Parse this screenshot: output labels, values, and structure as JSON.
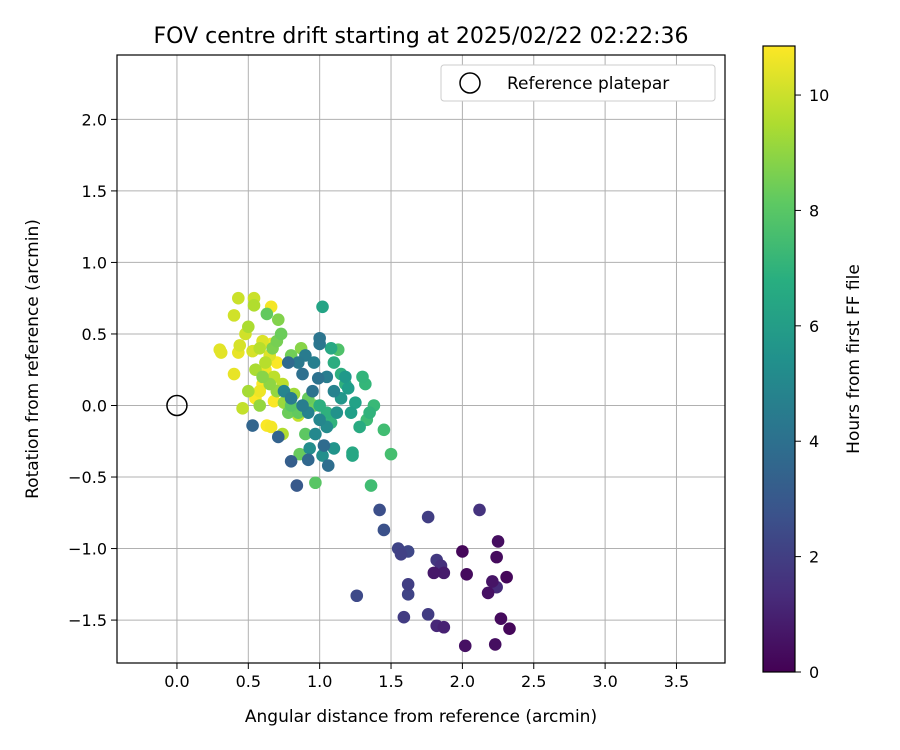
{
  "chart_data": {
    "type": "scatter",
    "title": "FOV centre drift starting at 2025/02/22 02:22:36",
    "xlabel": "Angular distance from reference (arcmin)",
    "ylabel": "Rotation from reference (arcmin)",
    "xlim": [
      -0.42,
      3.84
    ],
    "ylim": [
      -1.8,
      2.45
    ],
    "xticks": [
      "0.0",
      "0.5",
      "1.0",
      "1.5",
      "2.0",
      "2.5",
      "3.0",
      "3.5"
    ],
    "yticks": [
      "−1.5",
      "−1.0",
      "−0.5",
      "0.0",
      "0.5",
      "1.0",
      "1.5",
      "2.0"
    ],
    "xtick_values": [
      0,
      0.5,
      1,
      1.5,
      2,
      2.5,
      3,
      3.5
    ],
    "ytick_values": [
      -1.5,
      -1.0,
      -0.5,
      0,
      0.5,
      1.0,
      1.5,
      2.0
    ],
    "grid": true,
    "legend_position": "top-right",
    "legend": [
      {
        "label": "Reference platepar",
        "marker": "open-circle"
      }
    ],
    "reference_point": {
      "x": 0.0,
      "y": 0.0
    },
    "colorbar": {
      "label": "Hours from first FF file",
      "colormap": "viridis",
      "range": [
        0,
        10.85
      ],
      "ticks": [
        "0",
        "2",
        "4",
        "6",
        "8",
        "10"
      ],
      "tick_values": [
        0,
        2,
        4,
        6,
        8,
        10
      ]
    },
    "points": [
      {
        "x": 2.0,
        "y": -1.02,
        "h": 0.2
      },
      {
        "x": 2.03,
        "y": -1.18,
        "h": 0.3
      },
      {
        "x": 2.25,
        "y": -0.95,
        "h": 0.4
      },
      {
        "x": 2.24,
        "y": -1.06,
        "h": 0.3
      },
      {
        "x": 2.31,
        "y": -1.2,
        "h": 0.2
      },
      {
        "x": 2.18,
        "y": -1.31,
        "h": 0.5
      },
      {
        "x": 2.21,
        "y": -1.23,
        "h": 0.6
      },
      {
        "x": 2.27,
        "y": -1.49,
        "h": 0.3
      },
      {
        "x": 2.33,
        "y": -1.56,
        "h": 0.2
      },
      {
        "x": 2.23,
        "y": -1.67,
        "h": 0.4
      },
      {
        "x": 2.02,
        "y": -1.68,
        "h": 0.5
      },
      {
        "x": 1.8,
        "y": -1.17,
        "h": 0.7
      },
      {
        "x": 1.87,
        "y": -1.17,
        "h": 0.8
      },
      {
        "x": 1.87,
        "y": -1.55,
        "h": 1.0
      },
      {
        "x": 1.82,
        "y": -1.54,
        "h": 1.2
      },
      {
        "x": 2.12,
        "y": -0.73,
        "h": 1.6
      },
      {
        "x": 2.24,
        "y": -1.27,
        "h": 1.3
      },
      {
        "x": 1.76,
        "y": -0.78,
        "h": 2.0
      },
      {
        "x": 1.82,
        "y": -1.08,
        "h": 1.8
      },
      {
        "x": 1.85,
        "y": -1.12,
        "h": 1.5
      },
      {
        "x": 1.55,
        "y": -1.0,
        "h": 2.2
      },
      {
        "x": 1.57,
        "y": -1.04,
        "h": 2.1
      },
      {
        "x": 1.62,
        "y": -1.02,
        "h": 2.3
      },
      {
        "x": 1.62,
        "y": -1.25,
        "h": 2.0
      },
      {
        "x": 1.62,
        "y": -1.32,
        "h": 2.2
      },
      {
        "x": 1.59,
        "y": -1.48,
        "h": 1.9
      },
      {
        "x": 1.76,
        "y": -1.46,
        "h": 1.9
      },
      {
        "x": 1.26,
        "y": -1.33,
        "h": 2.4
      },
      {
        "x": 1.42,
        "y": -0.73,
        "h": 2.6
      },
      {
        "x": 1.45,
        "y": -0.87,
        "h": 2.7
      },
      {
        "x": 0.84,
        "y": -0.56,
        "h": 3.0
      },
      {
        "x": 0.8,
        "y": -0.39,
        "h": 3.2
      },
      {
        "x": 0.53,
        "y": -0.14,
        "h": 3.5
      },
      {
        "x": 0.71,
        "y": -0.22,
        "h": 3.4
      },
      {
        "x": 0.92,
        "y": -0.38,
        "h": 3.6
      },
      {
        "x": 1.03,
        "y": -0.28,
        "h": 3.8
      },
      {
        "x": 1.06,
        "y": -0.42,
        "h": 3.9
      },
      {
        "x": 0.78,
        "y": 0.3,
        "h": 3.7
      },
      {
        "x": 0.88,
        "y": 0.22,
        "h": 4.0
      },
      {
        "x": 0.95,
        "y": 0.1,
        "h": 4.1
      },
      {
        "x": 1.0,
        "y": 0.47,
        "h": 4.2
      },
      {
        "x": 1.0,
        "y": 0.43,
        "h": 4.3
      },
      {
        "x": 0.99,
        "y": 0.19,
        "h": 4.1
      },
      {
        "x": 0.85,
        "y": 0.3,
        "h": 4.4
      },
      {
        "x": 0.9,
        "y": 0.35,
        "h": 4.5
      },
      {
        "x": 0.96,
        "y": 0.3,
        "h": 4.7
      },
      {
        "x": 1.05,
        "y": 0.2,
        "h": 4.6
      },
      {
        "x": 1.1,
        "y": 0.1,
        "h": 4.8
      },
      {
        "x": 0.75,
        "y": 0.1,
        "h": 4.9
      },
      {
        "x": 0.8,
        "y": 0.05,
        "h": 4.5
      },
      {
        "x": 0.88,
        "y": 0.0,
        "h": 4.6
      },
      {
        "x": 0.92,
        "y": -0.05,
        "h": 4.8
      },
      {
        "x": 1.0,
        "y": -0.1,
        "h": 5.0
      },
      {
        "x": 1.05,
        "y": -0.15,
        "h": 5.2
      },
      {
        "x": 0.97,
        "y": -0.2,
        "h": 5.1
      },
      {
        "x": 0.93,
        "y": -0.3,
        "h": 5.3
      },
      {
        "x": 1.02,
        "y": -0.35,
        "h": 5.4
      },
      {
        "x": 1.1,
        "y": -0.3,
        "h": 5.6
      },
      {
        "x": 1.12,
        "y": -0.05,
        "h": 5.5
      },
      {
        "x": 1.15,
        "y": 0.05,
        "h": 5.7
      },
      {
        "x": 1.18,
        "y": 0.2,
        "h": 5.8
      },
      {
        "x": 1.2,
        "y": 0.12,
        "h": 6.0
      },
      {
        "x": 1.22,
        "y": -0.05,
        "h": 6.1
      },
      {
        "x": 1.25,
        "y": 0.02,
        "h": 6.2
      },
      {
        "x": 1.23,
        "y": -0.35,
        "h": 6.4
      },
      {
        "x": 1.23,
        "y": -0.33,
        "h": 6.5
      },
      {
        "x": 1.28,
        "y": -0.15,
        "h": 6.6
      },
      {
        "x": 1.02,
        "y": 0.69,
        "h": 6.3
      },
      {
        "x": 1.08,
        "y": 0.4,
        "h": 6.5
      },
      {
        "x": 1.1,
        "y": 0.3,
        "h": 6.7
      },
      {
        "x": 1.15,
        "y": 0.22,
        "h": 6.8
      },
      {
        "x": 1.18,
        "y": 0.15,
        "h": 6.9
      },
      {
        "x": 1.0,
        "y": 0.0,
        "h": 6.8
      },
      {
        "x": 1.05,
        "y": -0.05,
        "h": 6.9
      },
      {
        "x": 1.08,
        "y": -0.12,
        "h": 7.0
      },
      {
        "x": 1.3,
        "y": 0.2,
        "h": 7.1
      },
      {
        "x": 1.32,
        "y": 0.15,
        "h": 7.2
      },
      {
        "x": 1.35,
        "y": -0.05,
        "h": 7.0
      },
      {
        "x": 1.38,
        "y": 0.0,
        "h": 7.3
      },
      {
        "x": 1.33,
        "y": -0.1,
        "h": 7.4
      },
      {
        "x": 1.45,
        "y": -0.17,
        "h": 7.5
      },
      {
        "x": 1.5,
        "y": -0.34,
        "h": 7.6
      },
      {
        "x": 1.36,
        "y": -0.56,
        "h": 7.5
      },
      {
        "x": 1.13,
        "y": 0.39,
        "h": 7.8
      },
      {
        "x": 0.97,
        "y": -0.54,
        "h": 8.0
      },
      {
        "x": 0.86,
        "y": -0.34,
        "h": 8.3
      },
      {
        "x": 0.9,
        "y": -0.2,
        "h": 8.1
      },
      {
        "x": 0.85,
        "y": -0.05,
        "h": 8.2
      },
      {
        "x": 0.78,
        "y": -0.05,
        "h": 8.4
      },
      {
        "x": 0.8,
        "y": 0.0,
        "h": 8.0
      },
      {
        "x": 0.92,
        "y": 0.05,
        "h": 8.3
      },
      {
        "x": 0.96,
        "y": 0.0,
        "h": 8.5
      },
      {
        "x": 0.73,
        "y": 0.5,
        "h": 8.4
      },
      {
        "x": 0.7,
        "y": 0.45,
        "h": 8.6
      },
      {
        "x": 0.67,
        "y": 0.4,
        "h": 8.7
      },
      {
        "x": 0.63,
        "y": 0.64,
        "h": 8.2
      },
      {
        "x": 0.71,
        "y": 0.6,
        "h": 8.8
      },
      {
        "x": 0.8,
        "y": 0.35,
        "h": 8.5
      },
      {
        "x": 0.87,
        "y": 0.4,
        "h": 8.9
      },
      {
        "x": 0.6,
        "y": 0.2,
        "h": 8.9
      },
      {
        "x": 0.65,
        "y": 0.15,
        "h": 9.0
      },
      {
        "x": 0.7,
        "y": 0.1,
        "h": 9.1
      },
      {
        "x": 0.58,
        "y": 0.0,
        "h": 9.1
      },
      {
        "x": 0.75,
        "y": 0.02,
        "h": 9.2
      },
      {
        "x": 0.82,
        "y": 0.08,
        "h": 9.3
      },
      {
        "x": 0.5,
        "y": 0.1,
        "h": 9.4
      },
      {
        "x": 0.55,
        "y": 0.25,
        "h": 9.5
      },
      {
        "x": 0.5,
        "y": 0.55,
        "h": 9.5
      },
      {
        "x": 0.54,
        "y": 0.7,
        "h": 9.6
      },
      {
        "x": 0.58,
        "y": 0.4,
        "h": 9.7
      },
      {
        "x": 0.62,
        "y": 0.3,
        "h": 9.7
      },
      {
        "x": 0.68,
        "y": 0.2,
        "h": 9.8
      },
      {
        "x": 0.74,
        "y": 0.15,
        "h": 9.8
      },
      {
        "x": 0.85,
        "y": -0.07,
        "h": 9.9
      },
      {
        "x": 0.74,
        "y": -0.2,
        "h": 9.6
      },
      {
        "x": 0.46,
        "y": -0.02,
        "h": 9.9
      },
      {
        "x": 0.43,
        "y": 0.75,
        "h": 10.0
      },
      {
        "x": 0.54,
        "y": 0.75,
        "h": 10.0
      },
      {
        "x": 0.4,
        "y": 0.63,
        "h": 10.1
      },
      {
        "x": 0.48,
        "y": 0.5,
        "h": 10.1
      },
      {
        "x": 0.44,
        "y": 0.42,
        "h": 10.2
      },
      {
        "x": 0.53,
        "y": 0.38,
        "h": 10.2
      },
      {
        "x": 0.6,
        "y": 0.45,
        "h": 10.3
      },
      {
        "x": 0.65,
        "y": 0.35,
        "h": 10.3
      },
      {
        "x": 0.3,
        "y": 0.39,
        "h": 10.4
      },
      {
        "x": 0.31,
        "y": 0.37,
        "h": 10.4
      },
      {
        "x": 0.4,
        "y": 0.22,
        "h": 10.5
      },
      {
        "x": 0.43,
        "y": 0.37,
        "h": 10.5
      },
      {
        "x": 0.58,
        "y": 0.1,
        "h": 10.6
      },
      {
        "x": 0.62,
        "y": 0.25,
        "h": 10.6
      },
      {
        "x": 0.66,
        "y": 0.69,
        "h": 10.7
      },
      {
        "x": 0.66,
        "y": 0.43,
        "h": 10.7
      },
      {
        "x": 0.7,
        "y": 0.3,
        "h": 10.8
      },
      {
        "x": 0.6,
        "y": 0.15,
        "h": 10.8
      },
      {
        "x": 0.55,
        "y": 0.05,
        "h": 10.8
      },
      {
        "x": 0.68,
        "y": 0.03,
        "h": 10.8
      },
      {
        "x": 0.63,
        "y": -0.14,
        "h": 10.8
      },
      {
        "x": 0.66,
        "y": -0.15,
        "h": 10.7
      },
      {
        "x": 0.77,
        "y": 0.08,
        "h": 10.6
      }
    ]
  },
  "colors": {
    "grid": "#b0b0b0",
    "axes": "#000000",
    "legend_border": "#cccccc"
  }
}
